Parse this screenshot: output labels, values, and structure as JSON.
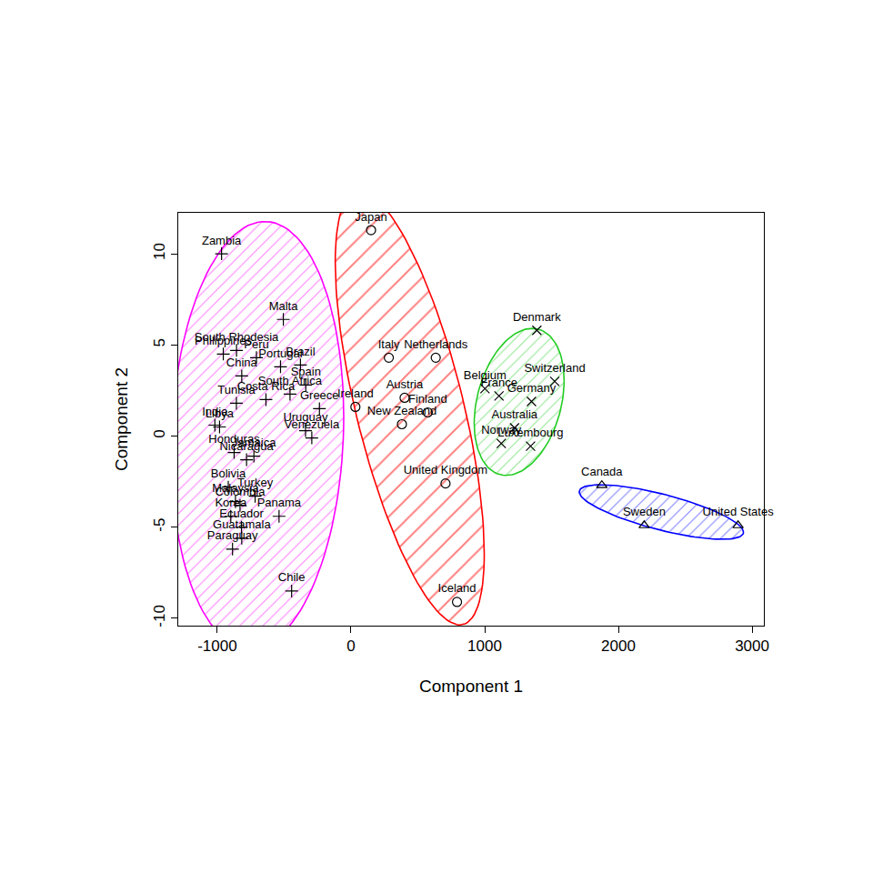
{
  "chart_data": {
    "type": "scatter",
    "x_label": "Component 1",
    "y_label": "Component 2",
    "xlim": [
      -1292,
      3088
    ],
    "ylim": [
      -10.4,
      12.25
    ],
    "xticks": [
      -1000,
      0,
      1000,
      2000,
      3000
    ],
    "yticks": [
      -10,
      -5,
      0,
      5,
      10
    ],
    "series": [
      {
        "color": "#ff00ff",
        "marker": "cross",
        "labels": [
          "Zambia",
          "Malta",
          "South Rhodesia",
          "Philippines",
          "Peru",
          "Brazil",
          "Portugal",
          "China",
          "Spain",
          "Costa Rica",
          "South Africa",
          "Greece",
          "Tunisia",
          "India",
          "Libya",
          "Uruguay",
          "Venezuela",
          "Honduras",
          "Nicaragua",
          "Jamaica",
          "Bolivia",
          "Turkey",
          "Malaysia",
          "Colombia",
          "Korea",
          "Panama",
          "Ecuador",
          "Guatamala",
          "Paraguay",
          "Chile"
        ],
        "x": [
          -968,
          -506,
          -856,
          -955,
          -707,
          -378,
          -527,
          -817,
          -338,
          -636,
          -456,
          -236,
          -857,
          -1018,
          -983,
          -340,
          -293,
          -874,
          -781,
          -726,
          -918,
          -717,
          -864,
          -830,
          -899,
          -538,
          -819,
          -817,
          -886,
          -444
        ],
        "y": [
          10.0,
          6.4,
          4.7,
          4.5,
          4.3,
          3.9,
          3.8,
          3.3,
          2.8,
          2.0,
          2.3,
          1.5,
          1.8,
          0.6,
          0.5,
          0.3,
          -0.1,
          -0.9,
          -1.3,
          -1.1,
          -2.8,
          -3.3,
          -3.6,
          -3.8,
          -4.4,
          -4.4,
          -5.0,
          -5.6,
          -6.2,
          -8.5
        ]
      },
      {
        "color": "#ff0000",
        "marker": "circle",
        "labels": [
          "Japan",
          "Italy",
          "Netherlands",
          "Austria",
          "Finland",
          "New Zealand",
          "Ireland",
          "United Kingdom",
          "Iceland"
        ],
        "x": [
          150,
          283,
          634,
          401,
          574,
          381,
          33,
          707,
          793
        ],
        "y": [
          11.3,
          4.3,
          4.3,
          2.1,
          1.3,
          0.65,
          1.6,
          -2.6,
          -9.1
        ]
      },
      {
        "color": "#22cc22",
        "marker": "x",
        "labels": [
          "Denmark",
          "Switzerland",
          "Belgium",
          "France",
          "Germany",
          "Australia",
          "Norway",
          "Luxembourg"
        ],
        "x": [
          1390,
          1524,
          1002,
          1107,
          1350,
          1223,
          1124,
          1343
        ],
        "y": [
          5.8,
          3.0,
          2.6,
          2.2,
          1.9,
          0.45,
          -0.4,
          -0.55
        ]
      },
      {
        "color": "#0000ff",
        "marker": "triangle",
        "labels": [
          "Canada",
          "Sweden",
          "United States"
        ],
        "x": [
          1876,
          2193,
          2895
        ],
        "y": [
          -2.7,
          -4.9,
          -4.9
        ]
      }
    ]
  }
}
